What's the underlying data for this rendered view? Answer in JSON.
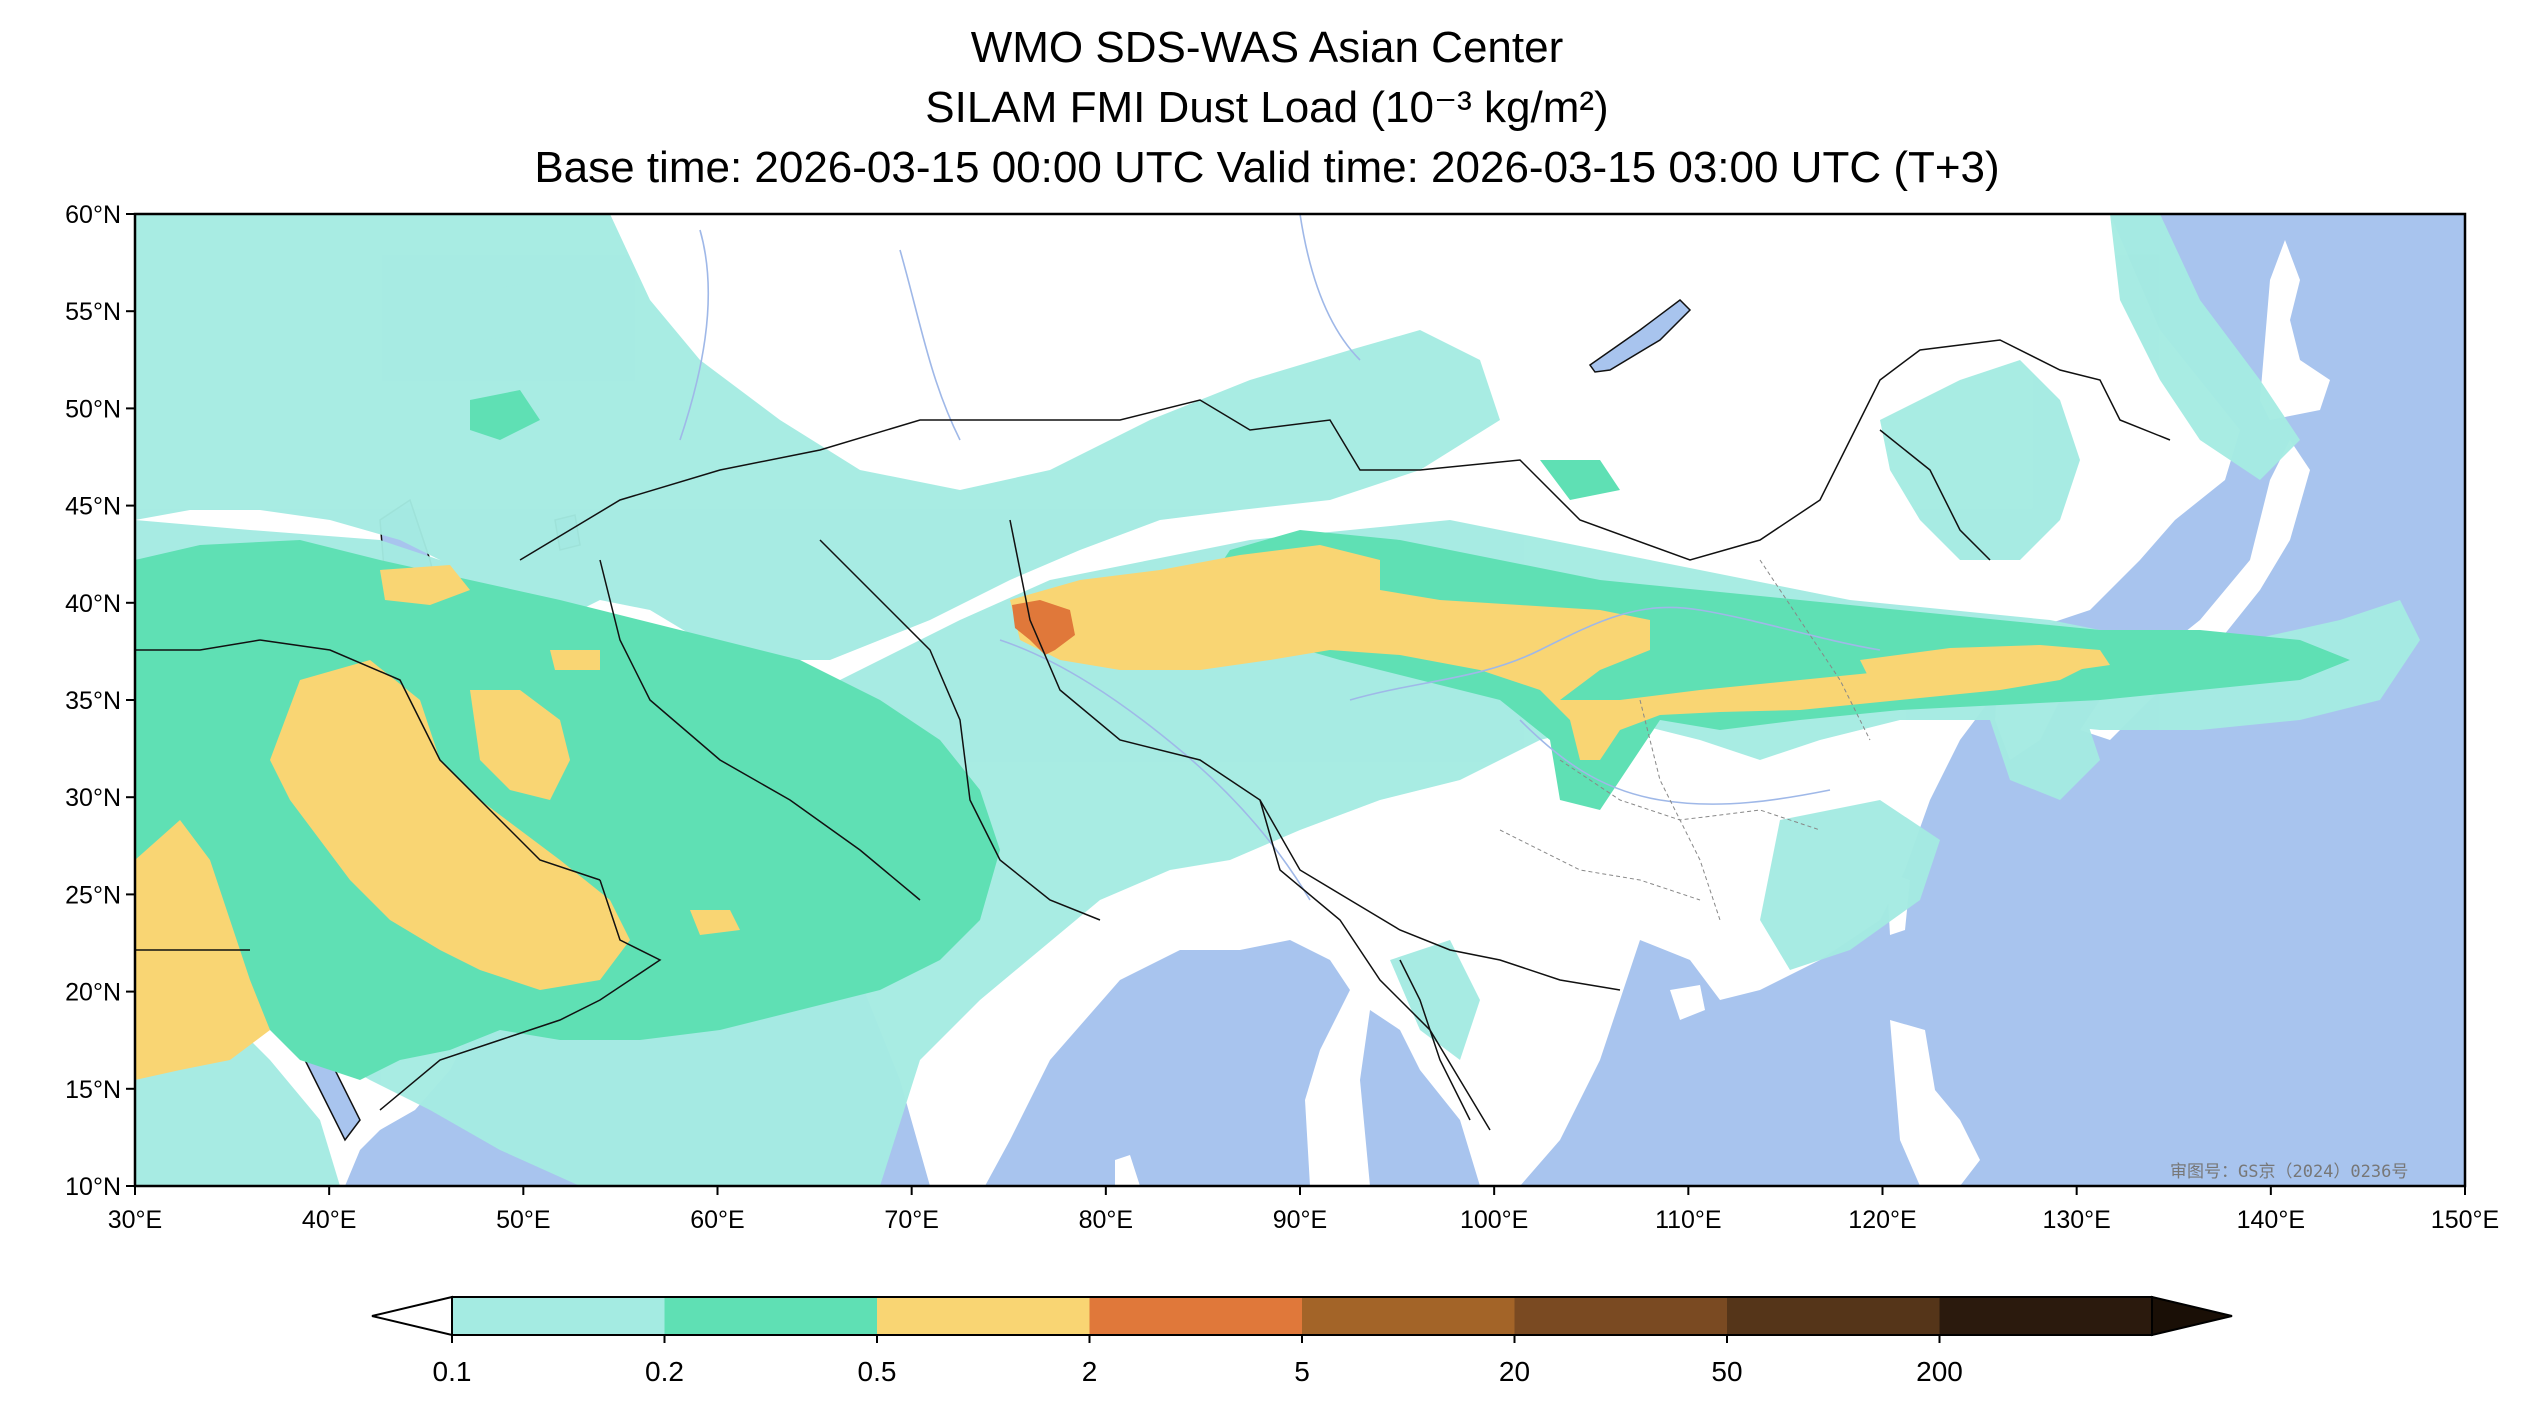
{
  "header": {
    "title": "WMO SDS-WAS Asian Center",
    "subtitle": "SILAM FMI Dust Load (10⁻³ kg/m²)",
    "time_line": "Base time: 2026-03-15 00:00 UTC Valid time: 2026-03-15 03:00 UTC (T+3)"
  },
  "map": {
    "extent": {
      "lon": [
        30,
        150
      ],
      "lat": [
        10,
        60
      ]
    },
    "lat_ticks": [
      "60°N",
      "55°N",
      "50°N",
      "45°N",
      "40°N",
      "35°N",
      "30°N",
      "25°N",
      "20°N",
      "15°N",
      "10°N"
    ],
    "lon_ticks": [
      "30°E",
      "40°E",
      "50°E",
      "60°E",
      "70°E",
      "80°E",
      "90°E",
      "100°E",
      "110°E",
      "120°E",
      "130°E",
      "140°E",
      "150°E"
    ],
    "watermark": "审图号：GS京（2024）0236号",
    "colors": {
      "ocean": "#a8c4ee",
      "land": "#ffffff",
      "border": "#111111",
      "river": "#9fb8e8"
    }
  },
  "colorbar": {
    "ticks": [
      "0.1",
      "0.2",
      "0.5",
      "2",
      "5",
      "20",
      "50",
      "200"
    ],
    "colors": [
      "#a4ebe2",
      "#5fe0b4",
      "#f9d573",
      "#e0783a",
      "#a36428",
      "#7a4a22",
      "#553519",
      "#2b1a0d"
    ],
    "under_color": "#ffffff",
    "over_color": "#1a0f06"
  }
}
